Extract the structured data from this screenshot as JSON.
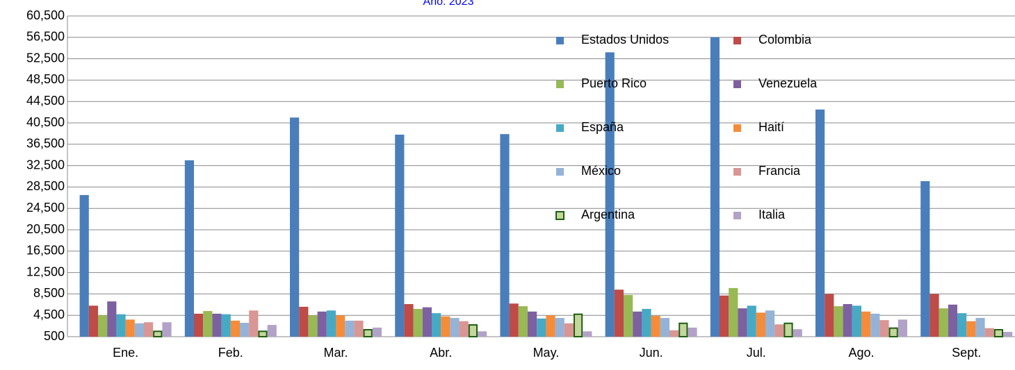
{
  "chart_data": {
    "type": "bar",
    "title": "Año: 2023",
    "categories": [
      "Ene.",
      "Feb.",
      "Mar.",
      "Abr.",
      "May.",
      "Jun.",
      "Jul.",
      "Ago.",
      "Sept."
    ],
    "series": [
      {
        "name": "Estados Unidos",
        "color": "#4a7ebb",
        "values": [
          27000,
          33500,
          41500,
          38300,
          38400,
          53700,
          56500,
          43000,
          29600
        ]
      },
      {
        "name": "Colombia",
        "color": "#be4b48",
        "values": [
          6300,
          4800,
          6100,
          6600,
          6700,
          9300,
          8200,
          8500,
          8500
        ]
      },
      {
        "name": "Puerto  Rico",
        "color": "#98b954",
        "values": [
          4500,
          5300,
          4500,
          5700,
          6200,
          8300,
          9600,
          6200,
          5800
        ]
      },
      {
        "name": "Venezuela",
        "color": "#7d60a0",
        "values": [
          7100,
          4800,
          5200,
          6000,
          5200,
          5200,
          5800,
          6600,
          6500
        ]
      },
      {
        "name": "España",
        "color": "#46aac5",
        "values": [
          4700,
          4700,
          5400,
          4900,
          3900,
          5700,
          6300,
          6300,
          4900
        ]
      },
      {
        "name": "Haití",
        "color": "#f58c3a",
        "values": [
          3700,
          3500,
          4500,
          4300,
          4500,
          4400,
          5000,
          5200,
          3400
        ]
      },
      {
        "name": "México",
        "color": "#95b3d7",
        "values": [
          3000,
          3100,
          3500,
          4000,
          4000,
          4000,
          5400,
          4800,
          4000
        ]
      },
      {
        "name": "Francia",
        "color": "#d99694",
        "values": [
          3200,
          5400,
          3500,
          3400,
          3000,
          1700,
          2800,
          3600,
          2100
        ]
      },
      {
        "name": "Argentina",
        "color": "#c3d69b",
        "edgecolor": "#1f5e12",
        "values": [
          1500,
          1500,
          1800,
          2700,
          4700,
          3000,
          3000,
          2100,
          1800
        ]
      },
      {
        "name": "Italia",
        "color": "#b3a2c7",
        "values": [
          3200,
          2700,
          2200,
          1500,
          1500,
          2200,
          1900,
          3700,
          1400
        ]
      }
    ],
    "ylim": [
      500,
      60500
    ],
    "yticks": [
      500,
      {
        "value": 4500,
        "label": "4,500"
      },
      {
        "value": 8500,
        "label": "8,500"
      },
      {
        "value": 12500,
        "label": "12,500"
      },
      {
        "value": 16500,
        "label": "16,500"
      },
      {
        "value": 20500,
        "label": "20,500"
      },
      {
        "value": 24500,
        "label": "24,500"
      },
      {
        "value": 28500,
        "label": "28,500"
      },
      {
        "value": 32500,
        "label": "32,500"
      },
      {
        "value": 36500,
        "label": "36,500"
      },
      {
        "value": 40500,
        "label": "40,500"
      },
      {
        "value": 44500,
        "label": "44,500"
      },
      {
        "value": 48500,
        "label": "48,500"
      },
      {
        "value": 52500,
        "label": "52,500"
      },
      {
        "value": 56500,
        "label": "56,500"
      },
      {
        "value": 60500,
        "label": "60,500"
      }
    ],
    "grid": true,
    "legend": "upper right"
  }
}
